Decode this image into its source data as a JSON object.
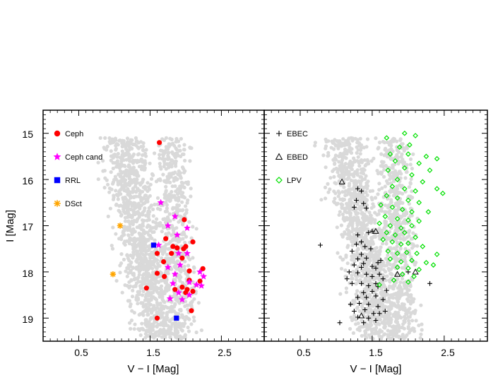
{
  "chart_data": [
    {
      "panel": "left",
      "type": "scatter",
      "xlabel": "V − I [Mag]",
      "ylabel": "I [Mag]",
      "xlim": [
        0,
        3.1
      ],
      "ylim": [
        19.5,
        14.5
      ],
      "x_ticks": [
        0.5,
        1.5,
        2.5
      ],
      "x_tick_labels": [
        "0.5",
        "1.5",
        "2.5"
      ],
      "y_ticks": [
        15,
        16,
        17,
        18,
        19
      ],
      "y_tick_labels": [
        "15",
        "16",
        "17",
        "18",
        "19"
      ],
      "background_color": "#d9d9d9",
      "series": [
        {
          "name": "Ceph",
          "marker": "circle",
          "color": "#ff0000",
          "points": [
            [
              1.63,
              15.2
            ],
            [
              1.72,
              17.28
            ],
            [
              1.98,
              16.87
            ],
            [
              2.1,
              17.35
            ],
            [
              1.82,
              17.45
            ],
            [
              1.88,
              17.48
            ],
            [
              1.97,
              17.5
            ],
            [
              2.0,
              17.45
            ],
            [
              1.6,
              17.6
            ],
            [
              1.8,
              17.6
            ],
            [
              1.69,
              17.78
            ],
            [
              1.95,
              17.7
            ],
            [
              2.05,
              17.98
            ],
            [
              2.24,
              17.93
            ],
            [
              1.6,
              18.03
            ],
            [
              1.7,
              18.1
            ],
            [
              2.2,
              18.2
            ],
            [
              2.05,
              18.18
            ],
            [
              1.85,
              18.38
            ],
            [
              1.95,
              18.33
            ],
            [
              2.02,
              18.38
            ],
            [
              1.45,
              18.35
            ],
            [
              2.0,
              18.45
            ],
            [
              2.1,
              18.42
            ],
            [
              2.08,
              18.84
            ],
            [
              1.6,
              19.0
            ]
          ]
        },
        {
          "name": "Ceph cand",
          "marker": "star",
          "color": "#ff00ff",
          "points": [
            [
              1.65,
              16.5
            ],
            [
              1.85,
              16.8
            ],
            [
              2.02,
              17.05
            ],
            [
              1.75,
              17.0
            ],
            [
              1.62,
              17.42
            ],
            [
              1.88,
              17.2
            ],
            [
              1.9,
              17.6
            ],
            [
              2.02,
              17.6
            ],
            [
              1.75,
              17.9
            ],
            [
              1.92,
              17.85
            ],
            [
              1.85,
              18.05
            ],
            [
              2.2,
              18.0
            ],
            [
              2.25,
              18.1
            ],
            [
              1.82,
              18.25
            ],
            [
              2.05,
              18.22
            ],
            [
              2.15,
              18.28
            ],
            [
              2.22,
              18.3
            ],
            [
              1.9,
              18.45
            ],
            [
              2.05,
              18.5
            ],
            [
              1.78,
              18.58
            ],
            [
              1.95,
              18.6
            ]
          ]
        },
        {
          "name": "RRL",
          "marker": "square",
          "color": "#0000ff",
          "points": [
            [
              1.55,
              17.42
            ],
            [
              1.87,
              19.0
            ]
          ]
        },
        {
          "name": "DSct",
          "marker": "asterisk",
          "color": "#ffa500",
          "points": [
            [
              1.08,
              17.0
            ],
            [
              0.98,
              18.05
            ]
          ]
        }
      ]
    },
    {
      "panel": "right",
      "type": "scatter",
      "xlabel": "V − I [Mag]",
      "xlim": [
        0,
        3.1
      ],
      "ylim": [
        19.5,
        14.5
      ],
      "x_ticks": [
        0.5,
        1.5,
        2.5
      ],
      "x_tick_labels": [
        "0.5",
        "1.5",
        "2.5"
      ],
      "background_color": "#d9d9d9",
      "series": [
        {
          "name": "EBEC",
          "marker": "plus",
          "color": "#000000",
          "points": [
            [
              1.3,
              16.2
            ],
            [
              1.35,
              16.25
            ],
            [
              1.28,
              16.45
            ],
            [
              1.25,
              16.6
            ],
            [
              1.38,
              16.52
            ],
            [
              1.42,
              16.62
            ],
            [
              0.78,
              17.42
            ],
            [
              1.3,
              17.2
            ],
            [
              1.45,
              17.15
            ],
            [
              1.5,
              17.12
            ],
            [
              1.35,
              17.35
            ],
            [
              1.28,
              17.4
            ],
            [
              1.4,
              17.45
            ],
            [
              1.22,
              17.55
            ],
            [
              1.35,
              17.62
            ],
            [
              1.48,
              17.5
            ],
            [
              1.42,
              17.7
            ],
            [
              1.3,
              17.72
            ],
            [
              1.25,
              17.85
            ],
            [
              1.38,
              17.82
            ],
            [
              1.5,
              17.88
            ],
            [
              1.58,
              17.8
            ],
            [
              1.62,
              17.75
            ],
            [
              1.55,
              17.92
            ],
            [
              1.18,
              18.0
            ],
            [
              1.3,
              18.02
            ],
            [
              1.42,
              18.05
            ],
            [
              1.5,
              18.1
            ],
            [
              1.6,
              18.05
            ],
            [
              1.65,
              18.15
            ],
            [
              1.55,
              18.25
            ],
            [
              1.35,
              18.25
            ],
            [
              1.22,
              18.25
            ],
            [
              1.45,
              18.3
            ],
            [
              1.58,
              18.32
            ],
            [
              1.38,
              18.45
            ],
            [
              1.5,
              18.42
            ],
            [
              1.7,
              18.4
            ],
            [
              1.3,
              18.55
            ],
            [
              1.42,
              18.55
            ],
            [
              1.55,
              18.52
            ],
            [
              1.65,
              18.6
            ],
            [
              1.2,
              18.7
            ],
            [
              1.32,
              18.68
            ],
            [
              1.45,
              18.7
            ],
            [
              1.58,
              18.75
            ],
            [
              1.25,
              18.85
            ],
            [
              1.4,
              18.82
            ],
            [
              1.52,
              18.9
            ],
            [
              1.68,
              18.85
            ],
            [
              1.3,
              18.98
            ],
            [
              1.45,
              19.0
            ],
            [
              1.55,
              19.05
            ],
            [
              1.38,
              19.1
            ],
            [
              1.05,
              19.1
            ],
            [
              2.0,
              18.0
            ],
            [
              2.3,
              18.25
            ],
            [
              1.35,
              17.9
            ],
            [
              1.15,
              18.15
            ],
            [
              1.6,
              18.9
            ]
          ]
        },
        {
          "name": "EBED",
          "marker": "triangle",
          "color": "#000000",
          "points": [
            [
              1.08,
              16.05
            ],
            [
              1.55,
              17.12
            ],
            [
              1.85,
              18.05
            ],
            [
              2.1,
              18.0
            ],
            [
              1.35,
              18.95
            ]
          ]
        },
        {
          "name": "LPV",
          "marker": "diamond",
          "color": "#00e000",
          "points": [
            [
              1.95,
              15.0
            ],
            [
              2.1,
              15.05
            ],
            [
              1.7,
              15.1
            ],
            [
              1.88,
              15.3
            ],
            [
              2.02,
              15.25
            ],
            [
              1.75,
              15.45
            ],
            [
              2.0,
              15.45
            ],
            [
              2.25,
              15.5
            ],
            [
              2.4,
              15.55
            ],
            [
              1.82,
              15.6
            ],
            [
              2.15,
              15.65
            ],
            [
              2.3,
              15.8
            ],
            [
              1.72,
              15.8
            ],
            [
              1.95,
              15.75
            ],
            [
              2.05,
              15.9
            ],
            [
              1.85,
              16.0
            ],
            [
              2.2,
              16.05
            ],
            [
              1.78,
              16.15
            ],
            [
              1.95,
              16.2
            ],
            [
              2.1,
              16.25
            ],
            [
              2.4,
              16.2
            ],
            [
              2.48,
              16.3
            ],
            [
              1.7,
              16.35
            ],
            [
              1.85,
              16.4
            ],
            [
              2.0,
              16.45
            ],
            [
              2.15,
              16.5
            ],
            [
              1.62,
              16.55
            ],
            [
              1.78,
              16.6
            ],
            [
              1.92,
              16.65
            ],
            [
              2.05,
              16.7
            ],
            [
              2.28,
              16.7
            ],
            [
              1.68,
              16.8
            ],
            [
              1.85,
              16.85
            ],
            [
              2.0,
              16.88
            ],
            [
              2.15,
              16.9
            ],
            [
              1.6,
              16.95
            ],
            [
              1.75,
              17.0
            ],
            [
              1.9,
              17.05
            ],
            [
              2.05,
              17.0
            ],
            [
              1.7,
              17.15
            ],
            [
              1.82,
              17.2
            ],
            [
              1.95,
              17.15
            ],
            [
              2.1,
              17.25
            ],
            [
              1.65,
              17.3
            ],
            [
              1.78,
              17.35
            ],
            [
              1.9,
              17.4
            ],
            [
              2.0,
              17.38
            ],
            [
              2.2,
              17.45
            ],
            [
              1.72,
              17.55
            ],
            [
              1.85,
              17.6
            ],
            [
              1.98,
              17.58
            ],
            [
              2.12,
              17.6
            ],
            [
              2.4,
              17.62
            ],
            [
              1.75,
              17.72
            ],
            [
              1.9,
              17.78
            ],
            [
              2.05,
              17.75
            ],
            [
              2.25,
              17.8
            ],
            [
              1.85,
              17.9
            ],
            [
              2.0,
              17.92
            ],
            [
              2.15,
              17.95
            ],
            [
              2.35,
              17.85
            ],
            [
              1.92,
              18.05
            ],
            [
              2.08,
              18.1
            ],
            [
              1.6,
              18.28
            ],
            [
              1.8,
              18.18
            ],
            [
              2.0,
              18.22
            ]
          ]
        }
      ]
    }
  ]
}
